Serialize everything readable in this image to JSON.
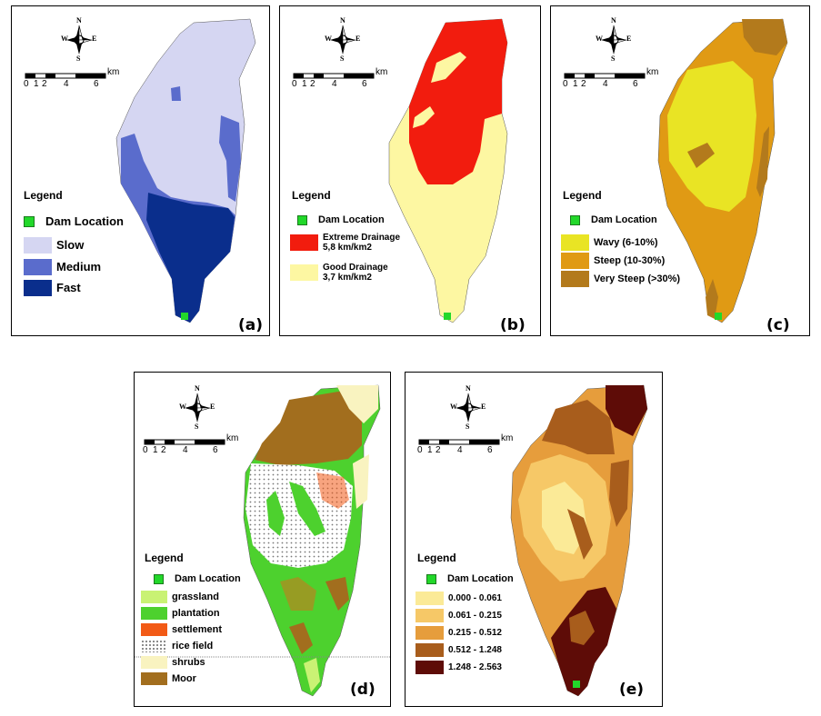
{
  "compass": {
    "n": "N",
    "s": "S",
    "e": "E",
    "w": "W"
  },
  "scale": {
    "unit": "km",
    "labels": [
      "0",
      "1",
      "2",
      "4",
      "6"
    ]
  },
  "legend_title": "Legend",
  "dam_label": "Dam Location",
  "panels": [
    {
      "id": "a",
      "letter": "(a)",
      "legend": [
        {
          "label": "Slow",
          "color": "#d5d6f2"
        },
        {
          "label": "Medium",
          "color": "#5a6ccc"
        },
        {
          "label": "Fast",
          "color": "#0a2e8c"
        }
      ]
    },
    {
      "id": "b",
      "letter": "(b)",
      "legend": [
        {
          "label": "Extreme Drainage",
          "sub": "5,8 km/km2",
          "color": "#f21c0e"
        },
        {
          "label": "Good Drainage",
          "sub": "3,7 km/km2",
          "color": "#fdf7a2"
        }
      ]
    },
    {
      "id": "c",
      "letter": "(c)",
      "legend": [
        {
          "label": "Wavy (6-10%)",
          "color": "#e9e424"
        },
        {
          "label": "Steep (10-30%)",
          "color": "#e09a14"
        },
        {
          "label": "Very Steep (>30%)",
          "color": "#b37a1c"
        }
      ]
    },
    {
      "id": "d",
      "letter": "(d)",
      "legend": [
        {
          "label": "grassland",
          "color": "#c9f274"
        },
        {
          "label": "plantation",
          "color": "#4dd12e"
        },
        {
          "label": "settlement",
          "color": "#f25a16"
        },
        {
          "label": "rice field",
          "color": "#ffffff",
          "pattern": "dots"
        },
        {
          "label": "shrubs",
          "color": "#f9f3c0"
        },
        {
          "label": "Moor",
          "color": "#a26e1e"
        }
      ]
    },
    {
      "id": "e",
      "letter": "(e)",
      "legend": [
        {
          "label": "0.000 - 0.061",
          "color": "#fbea97"
        },
        {
          "label": "0.061 - 0.215",
          "color": "#f6c867"
        },
        {
          "label": "0.215 - 0.512",
          "color": "#e69d3c"
        },
        {
          "label": "0.512 - 1.248",
          "color": "#a85d1c"
        },
        {
          "label": "1.248 - 2.563",
          "color": "#5e0c07"
        }
      ]
    }
  ]
}
